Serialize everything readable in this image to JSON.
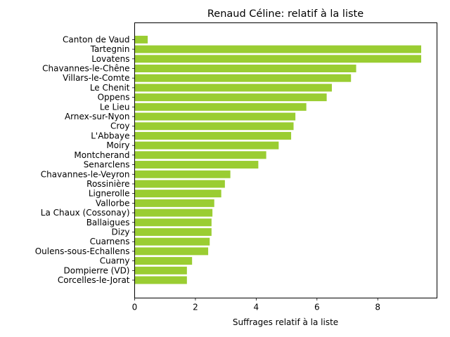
{
  "chart_data": {
    "type": "bar",
    "orientation": "horizontal",
    "title": "Renaud Céline: relatif à la liste",
    "xlabel": "Suffrages relatif à la liste",
    "ylabel": "",
    "xlim": [
      0,
      9.95
    ],
    "xticks": [
      0,
      2,
      4,
      6,
      8
    ],
    "grid": false,
    "bar_color": "#9acd32",
    "categories": [
      "Canton de Vaud",
      "Tartegnin",
      "Lovatens",
      "Chavannes-le-Chêne",
      "Villars-le-Comte",
      "Le Chenit",
      "Oppens",
      "Le Lieu",
      "Arnex-sur-Nyon",
      "Croy",
      "L'Abbaye",
      "Moiry",
      "Montcherand",
      "Senarclens",
      "Chavannes-le-Veyron",
      "Rossinière",
      "Lignerolle",
      "Vallorbe",
      "La Chaux (Cossonay)",
      "Ballaigues",
      "Dizy",
      "Cuarnens",
      "Oulens-sous-Echallens",
      "Cuarny",
      "Dompierre (VD)",
      "Corcelles-le-Jorat"
    ],
    "values": [
      0.43,
      9.43,
      9.43,
      7.29,
      7.12,
      6.49,
      6.32,
      5.65,
      5.29,
      5.23,
      5.15,
      4.74,
      4.33,
      4.07,
      3.15,
      2.97,
      2.85,
      2.62,
      2.56,
      2.53,
      2.53,
      2.47,
      2.42,
      1.89,
      1.72,
      1.72
    ]
  }
}
